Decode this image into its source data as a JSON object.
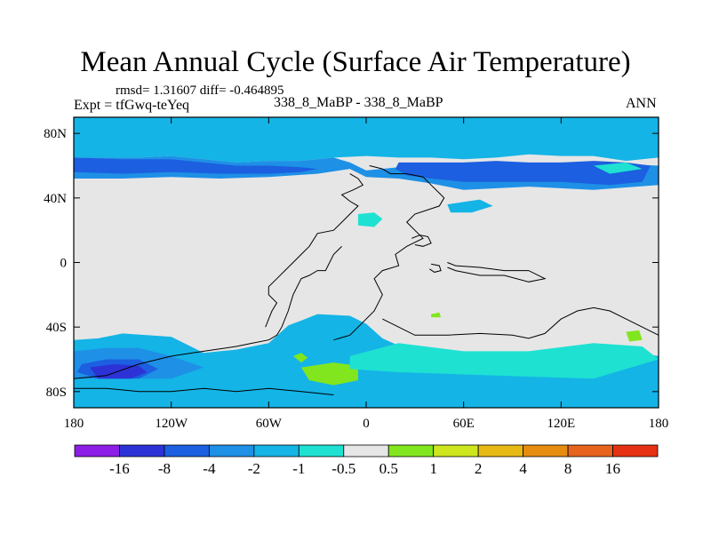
{
  "title": "Mean Annual Cycle (Surface Air Temperature)",
  "stats_text": "rmsd= 1.31607  diff= -0.464895",
  "expt_text": "Expt = tfGwq-teYeq",
  "run_text": "338_8_MaBP - 338_8_MaBP",
  "season_text": "ANN",
  "chart_data": {
    "type": "heatmap",
    "title": "Mean Annual Cycle (Surface Air Temperature)",
    "projection": "cylindrical equidistant",
    "x_range": [
      -180,
      180
    ],
    "y_range": [
      -90,
      90
    ],
    "x_ticks": [
      {
        "value": -180,
        "label": "180"
      },
      {
        "value": -120,
        "label": "120W"
      },
      {
        "value": -60,
        "label": "60W"
      },
      {
        "value": 0,
        "label": "0"
      },
      {
        "value": 60,
        "label": "60E"
      },
      {
        "value": 120,
        "label": "120E"
      },
      {
        "value": 180,
        "label": "180"
      }
    ],
    "y_ticks": [
      {
        "value": 80,
        "label": "80N"
      },
      {
        "value": 40,
        "label": "40N"
      },
      {
        "value": 0,
        "label": "0"
      },
      {
        "value": -40,
        "label": "40S"
      },
      {
        "value": -80,
        "label": "80S"
      }
    ],
    "colorbar": {
      "labels": [
        "-16",
        "-8",
        "-4",
        "-2",
        "-1",
        "-0.5",
        "0.5",
        "1",
        "2",
        "4",
        "8",
        "16"
      ],
      "colors": [
        "#8c1ee6",
        "#2d32d7",
        "#1c5fe0",
        "#1e90e6",
        "#14b4e6",
        "#1ee1d2",
        "#e6e6e6",
        "#82e61e",
        "#cde61e",
        "#e6b914",
        "#e68c0f",
        "#e6641e",
        "#e63214"
      ]
    },
    "regions": [
      {
        "band": "zonal_high_north",
        "color_index": 4,
        "polygon": [
          [
            -180,
            90
          ],
          [
            180,
            90
          ],
          [
            180,
            65
          ],
          [
            160,
            63
          ],
          [
            140,
            66
          ],
          [
            120,
            66
          ],
          [
            100,
            67
          ],
          [
            80,
            65
          ],
          [
            60,
            64
          ],
          [
            40,
            65
          ],
          [
            20,
            65
          ],
          [
            0,
            66
          ],
          [
            -20,
            65
          ],
          [
            -40,
            63
          ],
          [
            -60,
            63
          ],
          [
            -80,
            62
          ],
          [
            -100,
            64
          ],
          [
            -120,
            66
          ],
          [
            -140,
            65
          ],
          [
            -160,
            65
          ],
          [
            -180,
            65
          ]
        ]
      },
      {
        "band": "zonal_north",
        "color_index": 3,
        "polygon": [
          [
            -180,
            65
          ],
          [
            -140,
            65
          ],
          [
            -120,
            66
          ],
          [
            -100,
            64
          ],
          [
            -80,
            62
          ],
          [
            -60,
            63
          ],
          [
            -40,
            63
          ],
          [
            -20,
            65
          ],
          [
            -10,
            62
          ],
          [
            0,
            57
          ],
          [
            20,
            59
          ],
          [
            40,
            58
          ],
          [
            60,
            58
          ],
          [
            80,
            60
          ],
          [
            100,
            59
          ],
          [
            120,
            59
          ],
          [
            140,
            60
          ],
          [
            160,
            61
          ],
          [
            180,
            60
          ],
          [
            180,
            48
          ],
          [
            140,
            45
          ],
          [
            100,
            47
          ],
          [
            60,
            45
          ],
          [
            40,
            49
          ],
          [
            20,
            52
          ],
          [
            0,
            53
          ],
          [
            -10,
            58
          ],
          [
            -30,
            55
          ],
          [
            -60,
            53
          ],
          [
            -90,
            52
          ],
          [
            -120,
            53
          ],
          [
            -150,
            52
          ],
          [
            -180,
            52
          ]
        ]
      },
      {
        "band": "zonal_north_core",
        "color_index": 2,
        "polygon": [
          [
            -180,
            65
          ],
          [
            -150,
            64
          ],
          [
            -120,
            64
          ],
          [
            -100,
            62
          ],
          [
            -80,
            60
          ],
          [
            -60,
            60
          ],
          [
            -40,
            59
          ],
          [
            -30,
            58
          ],
          [
            -40,
            56
          ],
          [
            -60,
            55
          ],
          [
            -90,
            55
          ],
          [
            -120,
            56
          ],
          [
            -150,
            55
          ],
          [
            -180,
            56
          ]
        ]
      },
      {
        "band": "zonal_north_core",
        "color_index": 2,
        "polygon": [
          [
            20,
            62
          ],
          [
            40,
            62
          ],
          [
            60,
            62
          ],
          [
            80,
            63
          ],
          [
            100,
            62
          ],
          [
            120,
            62
          ],
          [
            140,
            63
          ],
          [
            160,
            62
          ],
          [
            175,
            60
          ],
          [
            170,
            50
          ],
          [
            150,
            48
          ],
          [
            120,
            50
          ],
          [
            90,
            50
          ],
          [
            60,
            50
          ],
          [
            40,
            52
          ],
          [
            25,
            54
          ],
          [
            18,
            58
          ]
        ]
      },
      {
        "band": "zonal_south",
        "color_index": 4,
        "polygon": [
          [
            -180,
            -48
          ],
          [
            -165,
            -47
          ],
          [
            -150,
            -44
          ],
          [
            -120,
            -46
          ],
          [
            -100,
            -56
          ],
          [
            -80,
            -54
          ],
          [
            -60,
            -50
          ],
          [
            -48,
            -39
          ],
          [
            -40,
            -36
          ],
          [
            -30,
            -32
          ],
          [
            -10,
            -33
          ],
          [
            0,
            -38
          ],
          [
            10,
            -47
          ],
          [
            30,
            -56
          ],
          [
            60,
            -58
          ],
          [
            100,
            -58
          ],
          [
            130,
            -56
          ],
          [
            160,
            -55
          ],
          [
            180,
            -58
          ],
          [
            180,
            -90
          ],
          [
            -180,
            -90
          ]
        ]
      },
      {
        "band": "zonal_south_strong",
        "color_index": 3,
        "polygon": [
          [
            -180,
            -55
          ],
          [
            -160,
            -53
          ],
          [
            -140,
            -53
          ],
          [
            -120,
            -58
          ],
          [
            -100,
            -65
          ],
          [
            -120,
            -72
          ],
          [
            -150,
            -72
          ],
          [
            -180,
            -72
          ]
        ]
      },
      {
        "band": "south_core",
        "color_index": 2,
        "polygon": [
          [
            -175,
            -63
          ],
          [
            -160,
            -60
          ],
          [
            -140,
            -60
          ],
          [
            -128,
            -66
          ],
          [
            -140,
            -72
          ],
          [
            -165,
            -72
          ],
          [
            -178,
            -68
          ]
        ]
      },
      {
        "band": "south_min",
        "color_index": 1,
        "polygon": [
          [
            -170,
            -65
          ],
          [
            -155,
            -63
          ],
          [
            -140,
            -64
          ],
          [
            -135,
            -68
          ],
          [
            -145,
            -72
          ],
          [
            -165,
            -72
          ]
        ]
      },
      {
        "band": "positive_anomaly",
        "color_index": 7,
        "polygon": [
          [
            -40,
            -65
          ],
          [
            -20,
            -62
          ],
          [
            -5,
            -64
          ],
          [
            -5,
            -73
          ],
          [
            -20,
            -76
          ],
          [
            -35,
            -73
          ]
        ]
      },
      {
        "band": "positive_anomaly",
        "color_index": 7,
        "polygon": [
          [
            -45,
            -58
          ],
          [
            -40,
            -56
          ],
          [
            -36,
            -59
          ],
          [
            -40,
            -62
          ]
        ]
      },
      {
        "band": "positive_anomaly",
        "color_index": 7,
        "polygon": [
          [
            160,
            -43
          ],
          [
            168,
            -42
          ],
          [
            170,
            -48
          ],
          [
            162,
            -49
          ]
        ]
      },
      {
        "band": "positive_anomaly",
        "color_index": 7,
        "polygon": [
          [
            40,
            -32
          ],
          [
            45,
            -31
          ],
          [
            46,
            -34
          ],
          [
            40,
            -34
          ]
        ]
      },
      {
        "band": "small_anomaly",
        "color_index": 5,
        "polygon": [
          [
            -5,
            30
          ],
          [
            5,
            31
          ],
          [
            10,
            27
          ],
          [
            5,
            22
          ],
          [
            -5,
            23
          ]
        ]
      },
      {
        "band": "small_anomaly",
        "color_index": 4,
        "polygon": [
          [
            50,
            36
          ],
          [
            70,
            39
          ],
          [
            78,
            35
          ],
          [
            65,
            31
          ],
          [
            52,
            31
          ]
        ]
      },
      {
        "band": "small_anomaly",
        "color_index": 5,
        "polygon": [
          [
            -10,
            -58
          ],
          [
            20,
            -50
          ],
          [
            60,
            -55
          ],
          [
            100,
            -55
          ],
          [
            140,
            -50
          ],
          [
            170,
            -52
          ],
          [
            180,
            -60
          ],
          [
            140,
            -72
          ],
          [
            80,
            -70
          ],
          [
            20,
            -68
          ],
          [
            -10,
            -66
          ]
        ]
      },
      {
        "band": "small_anomaly",
        "color_index": 5,
        "polygon": [
          [
            140,
            60
          ],
          [
            160,
            62
          ],
          [
            170,
            58
          ],
          [
            150,
            55
          ]
        ]
      }
    ],
    "boundaries": [
      {
        "points": [
          [
            2,
            60
          ],
          [
            10,
            58
          ],
          [
            15,
            55
          ],
          [
            25,
            55
          ],
          [
            35,
            53
          ],
          [
            40,
            48
          ],
          [
            45,
            43
          ],
          [
            48,
            40
          ],
          [
            45,
            35
          ],
          [
            30,
            30
          ],
          [
            25,
            25
          ],
          [
            30,
            20
          ],
          [
            35,
            15
          ],
          [
            25,
            10
          ],
          [
            18,
            5
          ],
          [
            20,
            -2
          ],
          [
            10,
            -5
          ],
          [
            5,
            -10
          ],
          [
            10,
            -20
          ],
          [
            5,
            -30
          ],
          [
            -5,
            -40
          ],
          [
            -10,
            -45
          ],
          [
            -20,
            -48
          ]
        ]
      },
      {
        "points": [
          [
            -15,
            10
          ],
          [
            -20,
            5
          ],
          [
            -25,
            -5
          ],
          [
            -30,
            -5
          ],
          [
            -35,
            -8
          ],
          [
            -40,
            -10
          ],
          [
            -45,
            -20
          ],
          [
            -48,
            -30
          ],
          [
            -52,
            -40
          ],
          [
            -55,
            -45
          ],
          [
            -60,
            -48
          ],
          [
            -70,
            -50
          ],
          [
            -80,
            -52
          ],
          [
            -100,
            -55
          ],
          [
            -120,
            -58
          ],
          [
            -140,
            -63
          ],
          [
            -160,
            -70
          ],
          [
            -180,
            -72
          ]
        ]
      },
      {
        "points": [
          [
            10,
            -35
          ],
          [
            20,
            -40
          ],
          [
            30,
            -45
          ],
          [
            50,
            -45
          ],
          [
            70,
            -44
          ],
          [
            90,
            -45
          ],
          [
            100,
            -47
          ],
          [
            110,
            -44
          ],
          [
            120,
            -35
          ],
          [
            130,
            -30
          ],
          [
            140,
            -28
          ],
          [
            150,
            -30
          ],
          [
            160,
            -35
          ],
          [
            170,
            -40
          ],
          [
            180,
            -45
          ]
        ]
      },
      {
        "points": [
          [
            50,
            0
          ],
          [
            55,
            -2
          ],
          [
            70,
            -3
          ],
          [
            85,
            -5
          ],
          [
            100,
            -5
          ],
          [
            110,
            -10
          ],
          [
            100,
            -12
          ],
          [
            85,
            -8
          ],
          [
            70,
            -8
          ],
          [
            55,
            -5
          ],
          [
            50,
            -3
          ]
        ]
      },
      {
        "points": [
          [
            -180,
            -78
          ],
          [
            -160,
            -78
          ],
          [
            -140,
            -80
          ],
          [
            -120,
            -80
          ],
          [
            -100,
            -78
          ],
          [
            -80,
            -80
          ],
          [
            -60,
            -78
          ],
          [
            -40,
            -80
          ],
          [
            -20,
            -82
          ]
        ]
      },
      {
        "points": [
          [
            -10,
            55
          ],
          [
            -5,
            52
          ],
          [
            -2,
            48
          ],
          [
            -8,
            45
          ],
          [
            -15,
            42
          ],
          [
            -10,
            38
          ],
          [
            -5,
            35
          ],
          [
            -10,
            30
          ],
          [
            -15,
            25
          ],
          [
            -20,
            20
          ],
          [
            -30,
            18
          ],
          [
            -35,
            10
          ],
          [
            -40,
            5
          ],
          [
            -45,
            0
          ],
          [
            -50,
            -5
          ],
          [
            -55,
            -10
          ],
          [
            -60,
            -15
          ],
          [
            -60,
            -20
          ],
          [
            -55,
            -25
          ],
          [
            -58,
            -30
          ],
          [
            -60,
            -35
          ],
          [
            -62,
            -40
          ]
        ]
      },
      {
        "points": [
          [
            28,
            15
          ],
          [
            33,
            17
          ],
          [
            38,
            16
          ],
          [
            40,
            12
          ],
          [
            35,
            10
          ],
          [
            30,
            11
          ]
        ]
      },
      {
        "points": [
          [
            40,
            -1
          ],
          [
            45,
            -2
          ],
          [
            46,
            -5
          ],
          [
            42,
            -6
          ],
          [
            39,
            -4
          ]
        ]
      }
    ]
  }
}
